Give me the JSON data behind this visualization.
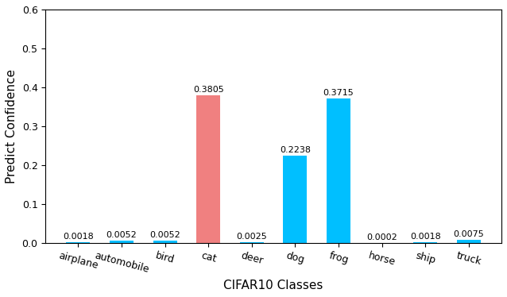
{
  "categories": [
    "airplane",
    "automobile",
    "bird",
    "cat",
    "deer",
    "dog",
    "frog",
    "horse",
    "ship",
    "truck"
  ],
  "values": [
    0.0018,
    0.0052,
    0.0052,
    0.3805,
    0.0025,
    0.2238,
    0.3715,
    0.0002,
    0.0018,
    0.0075
  ],
  "bar_colors": [
    "#00bfff",
    "#00bfff",
    "#00bfff",
    "#f08080",
    "#00bfff",
    "#00bfff",
    "#00bfff",
    "#00bfff",
    "#00bfff",
    "#00bfff"
  ],
  "ylabel": "Predict Confidence",
  "xlabel": "CIFAR10 Classes",
  "ylim": [
    0,
    0.6
  ],
  "yticks": [
    0.0,
    0.1,
    0.2,
    0.3,
    0.4,
    0.5,
    0.6
  ],
  "label_fontsize": 11,
  "tick_fontsize": 9,
  "bar_label_fontsize": 8,
  "figsize": [
    6.38,
    3.74
  ],
  "dpi": 100,
  "xtick_rotation": -15,
  "bar_width": 0.55
}
